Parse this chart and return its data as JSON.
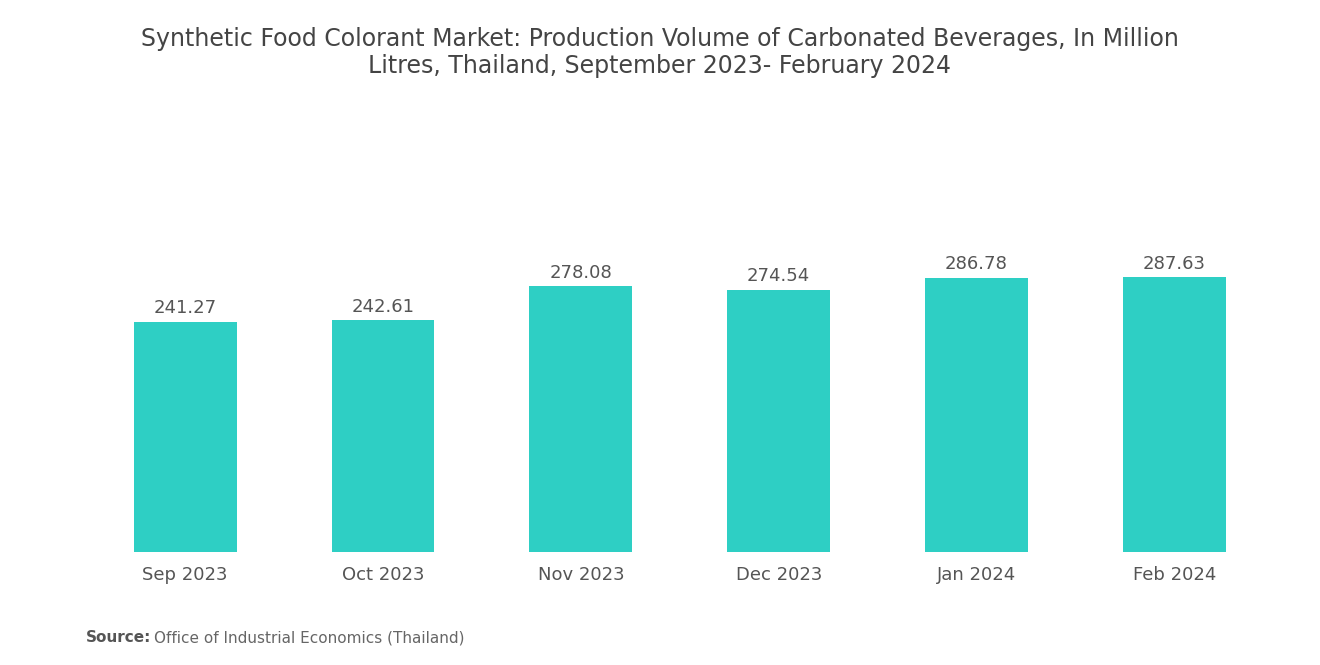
{
  "title": "Synthetic Food Colorant Market: Production Volume of Carbonated Beverages, In Million\nLitres, Thailand, September 2023- February 2024",
  "categories": [
    "Sep 2023",
    "Oct 2023",
    "Nov 2023",
    "Dec 2023",
    "Jan 2024",
    "Feb 2024"
  ],
  "values": [
    241.27,
    242.61,
    278.08,
    274.54,
    286.78,
    287.63
  ],
  "bar_color": "#2ecfc4",
  "background_color": "#ffffff",
  "title_fontsize": 17,
  "label_fontsize": 13,
  "value_fontsize": 13,
  "source_bold": "Source:",
  "source_normal": "  Office of Industrial Economics (Thailand)",
  "source_fontsize": 11,
  "ylim": [
    0,
    390
  ],
  "bar_width": 0.52
}
